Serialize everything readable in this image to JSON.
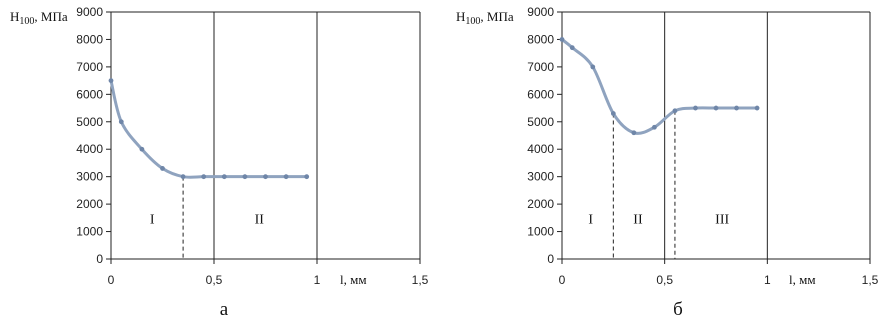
{
  "chart_data": [
    {
      "type": "line",
      "panel_label": "а",
      "ylabel": "H100, МПа",
      "xlabel": "l, мм",
      "xlim": [
        0,
        1.5
      ],
      "ylim": [
        0,
        9000
      ],
      "x_ticks": [
        {
          "value": 0,
          "label": "0"
        },
        {
          "value": 0.5,
          "label": "0,5"
        },
        {
          "value": 1,
          "label": "1"
        },
        {
          "value": 1.5,
          "label": "1,5"
        }
      ],
      "y_ticks": [
        0,
        1000,
        2000,
        3000,
        4000,
        5000,
        6000,
        7000,
        8000,
        9000
      ],
      "grid": "vertical",
      "color": "#8fa3bf",
      "series": [
        {
          "x": [
            0,
            0.05,
            0.15,
            0.25,
            0.35,
            0.45,
            0.55,
            0.65,
            0.75,
            0.85,
            0.95
          ],
          "y": [
            6500,
            5000,
            4000,
            3300,
            3000,
            3000,
            3000,
            3000,
            3000,
            3000,
            3000
          ]
        }
      ],
      "boundaries": [
        0.35
      ],
      "regions": [
        {
          "label": "I",
          "x": 0.2
        },
        {
          "label": "II",
          "x": 0.72
        }
      ]
    },
    {
      "type": "line",
      "panel_label": "б",
      "ylabel": "H100, МПа",
      "xlabel": "l, мм",
      "xlim": [
        0,
        1.5
      ],
      "ylim": [
        0,
        9000
      ],
      "x_ticks": [
        {
          "value": 0,
          "label": "0"
        },
        {
          "value": 0.5,
          "label": "0,5"
        },
        {
          "value": 1,
          "label": "1"
        },
        {
          "value": 1.5,
          "label": "1,5"
        }
      ],
      "y_ticks": [
        0,
        1000,
        2000,
        3000,
        4000,
        5000,
        6000,
        7000,
        8000,
        9000
      ],
      "grid": "vertical",
      "color": "#8fa3bf",
      "series": [
        {
          "x": [
            0,
            0.05,
            0.15,
            0.25,
            0.35,
            0.45,
            0.55,
            0.65,
            0.75,
            0.85,
            0.95
          ],
          "y": [
            8000,
            7700,
            7000,
            5300,
            4600,
            4800,
            5400,
            5500,
            5500,
            5500,
            5500
          ]
        }
      ],
      "boundaries": [
        0.25,
        0.55
      ],
      "regions": [
        {
          "label": "I",
          "x": 0.14
        },
        {
          "label": "II",
          "x": 0.37
        },
        {
          "label": "III",
          "x": 0.78
        }
      ]
    }
  ]
}
